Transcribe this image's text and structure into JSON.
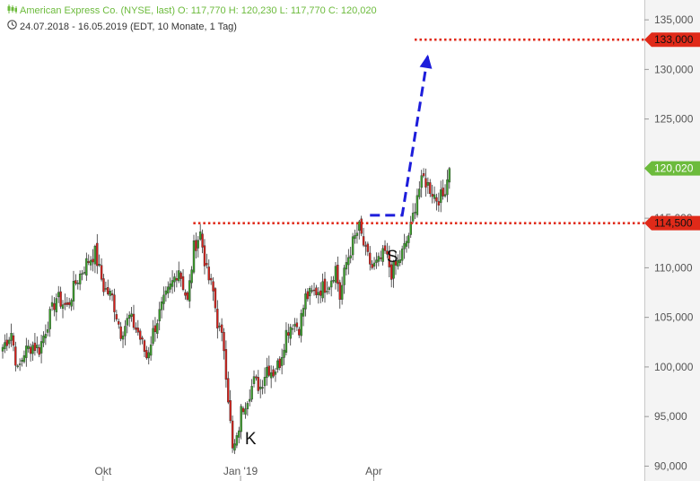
{
  "header": {
    "line1": "American Express Co. (NYSE, last)  O: 117,770  H: 120,230  L: 117,770  C: 120,020",
    "line2": "24.07.2018 - 16.05.2019   (EDT, 10 Monate, 1 Tag)",
    "line1_icon": "candlestick-icon",
    "line2_icon": "clock-icon"
  },
  "chart_data": {
    "type": "candlestick",
    "title": "American Express Co. (NYSE, last)",
    "ylim": [
      88.5,
      137
    ],
    "yticks": [
      {
        "v": 90,
        "label": "90,000"
      },
      {
        "v": 95,
        "label": "95,000"
      },
      {
        "v": 100,
        "label": "100,000"
      },
      {
        "v": 105,
        "label": "105,000"
      },
      {
        "v": 110,
        "label": "110,000"
      },
      {
        "v": 115,
        "label": "115,000"
      },
      {
        "v": 120,
        "label": "120,000"
      },
      {
        "v": 125,
        "label": "125,000"
      },
      {
        "v": 130,
        "label": "130,000"
      },
      {
        "v": 135,
        "label": "135,000"
      }
    ],
    "xticks": [
      {
        "day": 48,
        "label": "Okt"
      },
      {
        "day": 112,
        "label": "Jan '19"
      },
      {
        "day": 174,
        "label": "Apr"
      }
    ],
    "total_days": 300,
    "close_path": [
      [
        0,
        102.0
      ],
      [
        4,
        103.5
      ],
      [
        7,
        99.5
      ],
      [
        10,
        101.5
      ],
      [
        14,
        102.2
      ],
      [
        17,
        101.8
      ],
      [
        21,
        104.5
      ],
      [
        25,
        107.0
      ],
      [
        30,
        106.0
      ],
      [
        34,
        108.5
      ],
      [
        39,
        110.5
      ],
      [
        43,
        111.5
      ],
      [
        47,
        108.0
      ],
      [
        51,
        107.0
      ],
      [
        55,
        103.5
      ],
      [
        59,
        105.0
      ],
      [
        63,
        103.5
      ],
      [
        67,
        101.0
      ],
      [
        70,
        103.5
      ],
      [
        74,
        106.0
      ],
      [
        78,
        108.0
      ],
      [
        82,
        110.0
      ],
      [
        86,
        106.5
      ],
      [
        89,
        112.0
      ],
      [
        92,
        113.5
      ],
      [
        95,
        109.5
      ],
      [
        98,
        107.5
      ],
      [
        100,
        104.5
      ],
      [
        103,
        102.0
      ],
      [
        105,
        97.0
      ],
      [
        107,
        91.5
      ],
      [
        109,
        92.5
      ],
      [
        111,
        95.5
      ],
      [
        114,
        97.0
      ],
      [
        117,
        98.5
      ],
      [
        120,
        98.0
      ],
      [
        123,
        100.0
      ],
      [
        126,
        99.5
      ],
      [
        129,
        100.5
      ],
      [
        132,
        103.5
      ],
      [
        135,
        104.5
      ],
      [
        138,
        104.0
      ],
      [
        141,
        107.0
      ],
      [
        145,
        107.5
      ],
      [
        149,
        108.0
      ],
      [
        152,
        108.5
      ],
      [
        155,
        110.0
      ],
      [
        157,
        107.0
      ],
      [
        160,
        110.5
      ],
      [
        163,
        112.5
      ],
      [
        166,
        114.0
      ],
      [
        169,
        111.5
      ],
      [
        172,
        110.0
      ],
      [
        175,
        110.5
      ],
      [
        178,
        111.5
      ],
      [
        181,
        109.5
      ],
      [
        184,
        110.5
      ],
      [
        187,
        112.0
      ],
      [
        190,
        114.0
      ],
      [
        193,
        117.5
      ],
      [
        196,
        119.0
      ],
      [
        199,
        118.0
      ],
      [
        202,
        117.0
      ],
      [
        205,
        117.2
      ],
      [
        208,
        120.0
      ]
    ],
    "levels": [
      {
        "name": "resistance",
        "value": 133.0,
        "label": "133,000",
        "color": "#e02a19"
      },
      {
        "name": "support",
        "value": 114.5,
        "label": "114,500",
        "color": "#e02a19"
      },
      {
        "name": "last",
        "value": 120.02,
        "label": "120,020",
        "color": "#6cbb3c"
      }
    ],
    "annotations": [
      {
        "text": "K",
        "day": 114,
        "value": 92.2
      },
      {
        "text": "S",
        "day": 180,
        "value": 110.6
      }
    ],
    "forecast_path": [
      [
        171,
        115.3
      ],
      [
        186,
        115.3
      ],
      [
        198,
        131.5
      ]
    ],
    "colors": {
      "up": "#3aa02a",
      "down": "#d8201a",
      "forecast": "#1d1ddb",
      "dotted": "#e02a19",
      "last": "#6cbb3c"
    }
  }
}
